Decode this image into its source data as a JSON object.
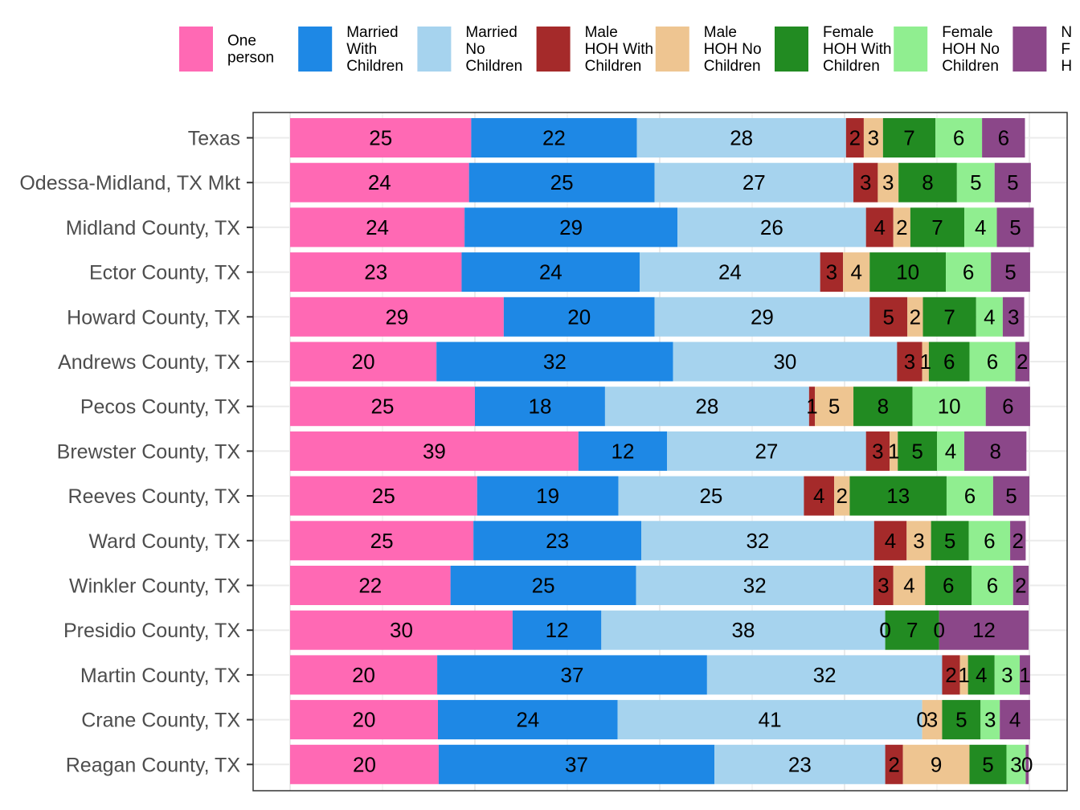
{
  "chart_data": {
    "type": "bar",
    "orientation": "horizontal",
    "stacked": true,
    "title": "",
    "xlabel": "",
    "ylabel": "",
    "xlim": [
      0,
      100
    ],
    "grid": true,
    "legend_position": "top",
    "categories": [
      "Texas",
      "Odessa-Midland, TX Mkt",
      "Midland County, TX",
      "Ector County, TX",
      "Howard County, TX",
      "Andrews County, TX",
      "Pecos County, TX",
      "Brewster County, TX",
      "Reeves County, TX",
      "Ward County, TX",
      "Winkler County, TX",
      "Presidio County, TX",
      "Martin County, TX",
      "Crane County, TX",
      "Reagan County, TX"
    ],
    "series": [
      {
        "name": "One person",
        "legend_lines": [
          "One",
          "person"
        ],
        "color": "#FF69B4",
        "values": [
          24.5,
          24.2,
          23.6,
          23.2,
          28.9,
          19.8,
          25.0,
          39.0,
          25.3,
          24.8,
          21.7,
          30.1,
          19.9,
          20.0,
          20.1
        ]
      },
      {
        "name": "Married With Children",
        "legend_lines": [
          "Married",
          "With",
          "Children"
        ],
        "color": "#1E88E5",
        "values": [
          22.4,
          25.1,
          28.8,
          24.1,
          20.4,
          32.0,
          17.6,
          12.0,
          19.1,
          22.7,
          25.1,
          12.0,
          36.5,
          24.3,
          37.3
        ]
      },
      {
        "name": "Married No Children",
        "legend_lines": [
          "Married",
          "No",
          "Children"
        ],
        "color": "#A6D3EE",
        "values": [
          28.3,
          26.9,
          25.5,
          24.4,
          29.1,
          30.3,
          27.6,
          26.9,
          25.1,
          31.5,
          32.1,
          38.4,
          31.8,
          41.2,
          23.1
        ]
      },
      {
        "name": "Male HOH With Children",
        "legend_lines": [
          "Male",
          "HOH With",
          "Children"
        ],
        "color": "#A52A2A",
        "values": [
          2.4,
          3.3,
          3.7,
          3.1,
          5.1,
          3.4,
          0.8,
          3.2,
          4.1,
          4.4,
          2.7,
          0.0,
          2.4,
          0.0,
          2.4
        ]
      },
      {
        "name": "Male HOH No Children",
        "legend_lines": [
          "Male",
          "HOH No",
          "Children"
        ],
        "color": "#EEC591",
        "values": [
          2.6,
          2.8,
          2.3,
          3.6,
          2.1,
          0.9,
          5.2,
          1.1,
          2.1,
          3.3,
          4.3,
          0.0,
          1.1,
          2.7,
          9.0
        ]
      },
      {
        "name": "Female HOH With Children",
        "legend_lines": [
          "Female",
          "HOH With",
          "Children"
        ],
        "color": "#228B22",
        "values": [
          7.1,
          7.9,
          7.3,
          10.3,
          7.2,
          5.5,
          8.0,
          5.3,
          13.1,
          5.1,
          6.3,
          7.3,
          3.6,
          5.2,
          5.0
        ]
      },
      {
        "name": "Female HOH No Children",
        "legend_lines": [
          "Female",
          "HOH No",
          "Children"
        ],
        "color": "#90EE90",
        "values": [
          6.3,
          5.1,
          4.4,
          6.1,
          3.6,
          6.2,
          9.9,
          3.7,
          6.3,
          5.6,
          5.6,
          0.0,
          3.4,
          2.6,
          2.6
        ]
      },
      {
        "name": "Non-Family Households",
        "legend_lines": [
          "N",
          "F",
          "H"
        ],
        "color": "#8B4789",
        "values": [
          5.8,
          4.9,
          5.0,
          5.3,
          2.9,
          1.9,
          6.0,
          8.4,
          4.9,
          2.1,
          2.1,
          12.1,
          1.4,
          4.1,
          0.4
        ]
      }
    ]
  }
}
